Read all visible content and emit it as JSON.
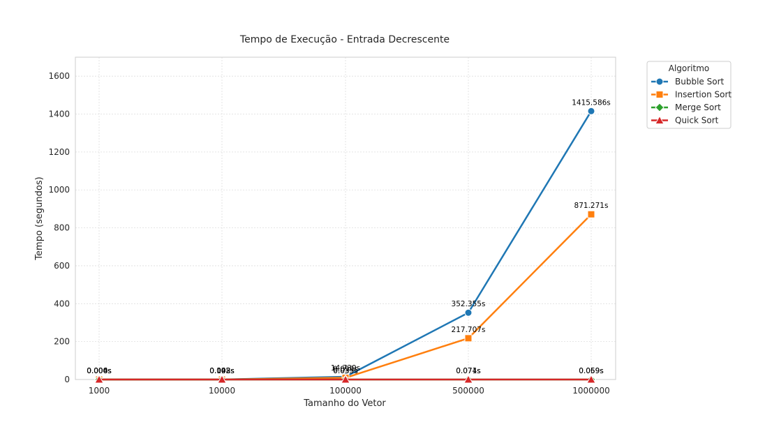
{
  "chart_data": {
    "type": "line",
    "title": "Tempo de Execução - Entrada Decrescente",
    "xlabel": "Tamanho do Vetor",
    "ylabel": "Tempo (segundos)",
    "categories": [
      "1000",
      "10000",
      "100000",
      "500000",
      "1000000"
    ],
    "yticks": [
      0,
      200,
      400,
      600,
      800,
      1000,
      1200,
      1400,
      1600
    ],
    "ylim": [
      0,
      1700
    ],
    "grid": true,
    "legend": {
      "title": "Algoritmo",
      "placement": "outside-top-right"
    },
    "series": [
      {
        "name": "Bubble Sort",
        "color": "#1f77b4",
        "marker": "circle",
        "values": [
          0.006,
          0.148,
          14.739,
          352.355,
          1415.586
        ],
        "labels": [
          "0.006s",
          "0.148s",
          "14.739s",
          "352.355s",
          "1415.586s"
        ]
      },
      {
        "name": "Insertion Sort",
        "color": "#ff7f0e",
        "marker": "square",
        "values": [
          0.004,
          0.092,
          9.099,
          217.707,
          871.271
        ],
        "labels": [
          "0.004s",
          "0.092s",
          "9.099s",
          "217.707s",
          "871.271s"
        ]
      },
      {
        "name": "Merge Sort",
        "color": "#2ca02c",
        "marker": "diamond",
        "values": [
          0.0,
          0.003,
          0.035,
          0.074,
          0.069
        ],
        "labels": [
          "0.000s",
          "0.003s",
          "0.035s",
          "0.074s",
          "0.069s"
        ]
      },
      {
        "name": "Quick Sort",
        "color": "#d62728",
        "marker": "triangle",
        "values": [
          0.0,
          0.003,
          0.035,
          0.071,
          0.059
        ],
        "labels": [
          "0.000s",
          "0.003s",
          "0.035s",
          "0.071s",
          "0.059s"
        ]
      }
    ]
  }
}
